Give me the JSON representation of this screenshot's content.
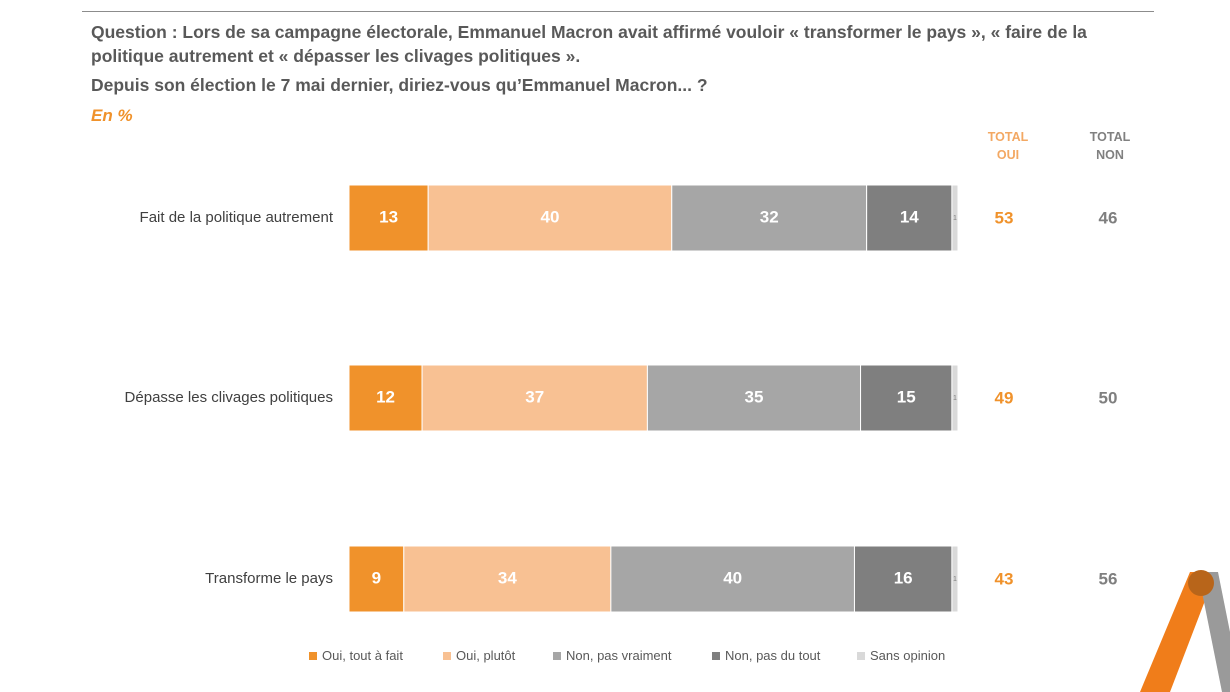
{
  "header": {
    "question": "Question : Lors de sa campagne électorale, Emmanuel Macron avait affirmé vouloir « transformer le pays », « faire de la politique autrement  et « dépasser les clivages politiques ».",
    "question2": "Depuis son élection le 7 mai dernier, diriez-vous qu’Emmanuel Macron... ?",
    "unit": "En %"
  },
  "totals_headers": {
    "oui": [
      "TOTAL",
      "OUI"
    ],
    "non": [
      "TOTAL",
      "NON"
    ]
  },
  "colors": {
    "oui_tout_a_fait": "#f0922b",
    "oui_plutot": "#f8c193",
    "non_pas_vraiment": "#a6a6a6",
    "non_pas_du_tout": "#7f7f7f",
    "sans_opinion": "#d9d9d9",
    "total_oui_text": "#f0922b",
    "total_non_text": "#7f7f7f",
    "logo_orange": "#f07d1a",
    "logo_gray": "#9a9a9a"
  },
  "chart_data": {
    "type": "bar",
    "orientation": "horizontal",
    "stacked": true,
    "xlim": [
      0,
      100
    ],
    "unit": "%",
    "categories": [
      "Fait de la politique autrement",
      "Dépasse les clivages politiques",
      "Transforme le pays"
    ],
    "series": [
      {
        "name": "Oui, tout à fait",
        "values": [
          13,
          12,
          9
        ]
      },
      {
        "name": "Oui, plutôt",
        "values": [
          40,
          37,
          34
        ]
      },
      {
        "name": "Non, pas vraiment",
        "values": [
          32,
          35,
          40
        ]
      },
      {
        "name": "Non, pas du tout",
        "values": [
          14,
          15,
          16
        ]
      },
      {
        "name": "Sans opinion",
        "values": [
          1,
          1,
          1
        ]
      }
    ],
    "totals": {
      "total_oui": [
        53,
        49,
        43
      ],
      "total_non": [
        46,
        50,
        56
      ]
    },
    "legend_position": "bottom"
  }
}
